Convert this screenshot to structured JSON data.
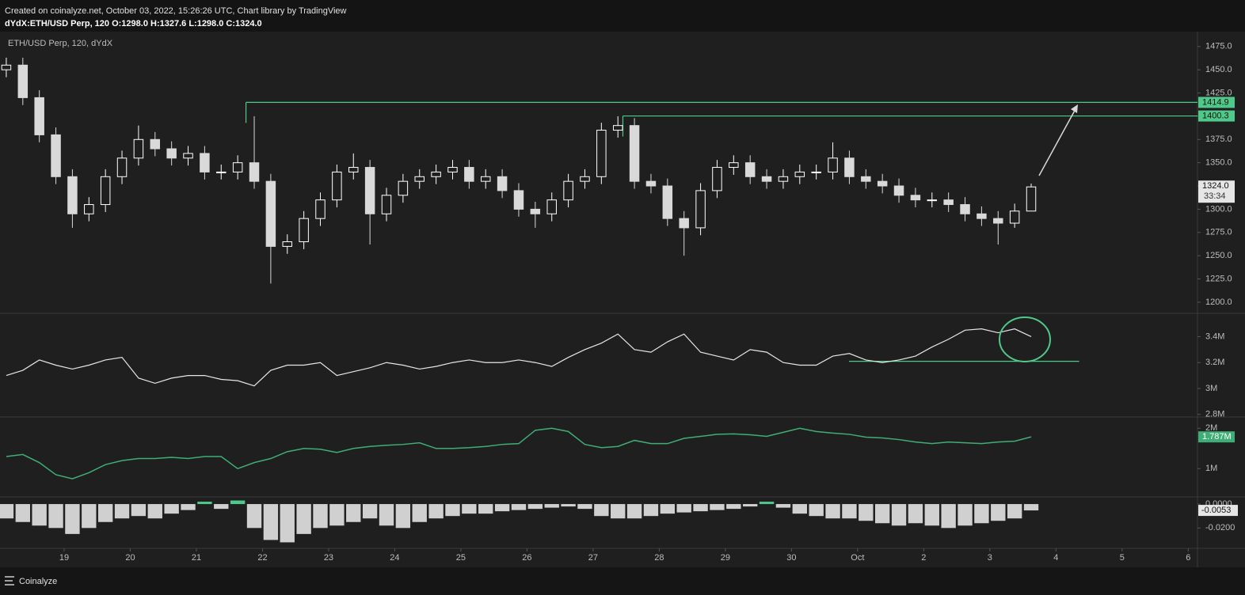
{
  "header": {
    "line1": "Created on coinalyze.net, October 03, 2022, 15:26:26 UTC, Chart library by TradingView",
    "line2": "dYdX:ETH/USD Perp, 120 O:1298.0 H:1327.6 L:1298.0 C:1324.0"
  },
  "footer": "Coinalyze",
  "chart_data": [
    {
      "type": "candlestick",
      "title": "ETH/USD Perp, 120, dYdX",
      "x": [
        18.125,
        18.375,
        18.625,
        18.875,
        19.125,
        19.375,
        19.625,
        19.875,
        20.125,
        20.375,
        20.625,
        20.875,
        21.125,
        21.375,
        21.625,
        21.875,
        22.125,
        22.375,
        22.625,
        22.875,
        23.125,
        23.375,
        23.625,
        23.875,
        24.125,
        24.375,
        24.625,
        24.875,
        25.125,
        25.375,
        25.625,
        25.875,
        26.125,
        26.375,
        26.625,
        26.875,
        27.125,
        27.375,
        27.625,
        27.875,
        28.125,
        28.375,
        28.625,
        28.875,
        29.125,
        29.375,
        29.625,
        29.875,
        30.125,
        30.375,
        30.625,
        30.875,
        31.125,
        31.375,
        31.625,
        31.875,
        32.125,
        32.375,
        32.625,
        32.875,
        33.125,
        33.375,
        33.625
      ],
      "open": [
        1450,
        1455,
        1420,
        1380,
        1335,
        1295,
        1305,
        1335,
        1355,
        1375,
        1365,
        1355,
        1360,
        1340,
        1340,
        1350,
        1330,
        1260,
        1265,
        1290,
        1310,
        1340,
        1345,
        1295,
        1315,
        1330,
        1335,
        1340,
        1345,
        1330,
        1335,
        1320,
        1300,
        1295,
        1310,
        1330,
        1335,
        1385,
        1390,
        1330,
        1325,
        1290,
        1280,
        1320,
        1345,
        1350,
        1335,
        1330,
        1335,
        1340,
        1340,
        1355,
        1335,
        1330,
        1325,
        1315,
        1310,
        1310,
        1305,
        1295,
        1290,
        1285,
        1298
      ],
      "high": [
        1463,
        1463,
        1428,
        1388,
        1343,
        1313,
        1343,
        1363,
        1390,
        1383,
        1373,
        1368,
        1368,
        1348,
        1358,
        1400,
        1338,
        1273,
        1298,
        1318,
        1348,
        1360,
        1353,
        1323,
        1338,
        1343,
        1348,
        1353,
        1353,
        1343,
        1343,
        1328,
        1308,
        1318,
        1338,
        1343,
        1393,
        1400,
        1398,
        1338,
        1333,
        1298,
        1328,
        1353,
        1358,
        1358,
        1343,
        1343,
        1348,
        1348,
        1372,
        1363,
        1343,
        1338,
        1333,
        1323,
        1318,
        1318,
        1313,
        1303,
        1298,
        1306,
        1327.6
      ],
      "low": [
        1442,
        1412,
        1372,
        1327,
        1280,
        1287,
        1297,
        1327,
        1347,
        1357,
        1347,
        1347,
        1332,
        1332,
        1332,
        1322,
        1220,
        1252,
        1257,
        1282,
        1302,
        1332,
        1262,
        1287,
        1307,
        1322,
        1327,
        1332,
        1322,
        1322,
        1312,
        1292,
        1280,
        1287,
        1302,
        1322,
        1327,
        1377,
        1322,
        1317,
        1282,
        1250,
        1272,
        1312,
        1337,
        1327,
        1322,
        1322,
        1327,
        1332,
        1332,
        1327,
        1322,
        1317,
        1307,
        1302,
        1302,
        1297,
        1287,
        1282,
        1262,
        1280,
        1298
      ],
      "close": [
        1455,
        1420,
        1380,
        1335,
        1295,
        1305,
        1335,
        1355,
        1375,
        1365,
        1355,
        1360,
        1340,
        1340,
        1350,
        1330,
        1260,
        1265,
        1290,
        1310,
        1340,
        1345,
        1295,
        1315,
        1330,
        1335,
        1340,
        1345,
        1330,
        1335,
        1320,
        1300,
        1295,
        1310,
        1330,
        1335,
        1385,
        1390,
        1330,
        1325,
        1290,
        1280,
        1320,
        1345,
        1350,
        1335,
        1330,
        1335,
        1340,
        1340,
        1355,
        1335,
        1330,
        1325,
        1315,
        1310,
        1310,
        1305,
        1295,
        1290,
        1285,
        1298,
        1324
      ],
      "up_color": "#ffffff",
      "down_color": "#d9d9d9",
      "xlim": [
        18.03,
        36.14
      ],
      "ylim": [
        1188,
        1491
      ],
      "yticks": [
        {
          "value": 1200,
          "label": "1200.0"
        },
        {
          "value": 1225,
          "label": "1225.0"
        },
        {
          "value": 1250,
          "label": "1250.0"
        },
        {
          "value": 1275,
          "label": "1275.0"
        },
        {
          "value": 1300,
          "label": "1300.0"
        },
        {
          "value": 1325,
          "label": "1325.0"
        },
        {
          "value": 1350,
          "label": "1350.0"
        },
        {
          "value": 1375,
          "label": "1375.0"
        },
        {
          "value": 1400,
          "label": "1400.0"
        },
        {
          "value": 1425,
          "label": "1425.0"
        },
        {
          "value": 1450,
          "label": "1450.0"
        },
        {
          "value": 1475,
          "label": "1475.0"
        }
      ],
      "levels": [
        {
          "value": 1414.9,
          "x_start": 21.75
        },
        {
          "value": 1400.3,
          "x_start": 27.45
        }
      ],
      "level_color": "#4fc98a",
      "last_value_label": "1324.0",
      "countdown": "33:34",
      "grid": false
    },
    {
      "type": "line",
      "x": [
        18.125,
        18.375,
        18.625,
        18.875,
        19.125,
        19.375,
        19.625,
        19.875,
        20.125,
        20.375,
        20.625,
        20.875,
        21.125,
        21.375,
        21.625,
        21.875,
        22.125,
        22.375,
        22.625,
        22.875,
        23.125,
        23.375,
        23.625,
        23.875,
        24.125,
        24.375,
        24.625,
        24.875,
        25.125,
        25.375,
        25.625,
        25.875,
        26.125,
        26.375,
        26.625,
        26.875,
        27.125,
        27.375,
        27.625,
        27.875,
        28.125,
        28.375,
        28.625,
        28.875,
        29.125,
        29.375,
        29.625,
        29.875,
        30.125,
        30.375,
        30.625,
        30.875,
        31.125,
        31.375,
        31.625,
        31.875,
        32.125,
        32.375,
        32.625,
        32.875,
        33.125,
        33.375,
        33.625
      ],
      "values": [
        3100000,
        3140000,
        3220000,
        3180000,
        3150000,
        3180000,
        3220000,
        3240000,
        3080000,
        3040000,
        3080000,
        3100000,
        3100000,
        3070000,
        3060000,
        3020000,
        3140000,
        3180000,
        3180000,
        3200000,
        3100000,
        3130000,
        3160000,
        3200000,
        3180000,
        3150000,
        3170000,
        3200000,
        3220000,
        3200000,
        3200000,
        3220000,
        3200000,
        3170000,
        3240000,
        3300000,
        3350000,
        3420000,
        3300000,
        3280000,
        3360000,
        3420000,
        3280000,
        3250000,
        3220000,
        3300000,
        3280000,
        3200000,
        3180000,
        3180000,
        3250000,
        3270000,
        3220000,
        3200000,
        3220000,
        3250000,
        3320000,
        3380000,
        3450000,
        3460000,
        3430000,
        3460000,
        3400000
      ],
      "color": "#e6e6e6",
      "xlim": [
        18.03,
        36.14
      ],
      "ylim": [
        2780000,
        3580000
      ],
      "yticks": [
        {
          "value": 2800000,
          "label": "2.8M"
        },
        {
          "value": 3000000,
          "label": "3M"
        },
        {
          "value": 3200000,
          "label": "3.2M"
        },
        {
          "value": 3400000,
          "label": "3.4M"
        }
      ],
      "levels": [
        {
          "value": 3210000,
          "x_start": 30.87,
          "x_end": 34.35
        }
      ],
      "level_color": "#4fc98a",
      "grid": false
    },
    {
      "type": "line",
      "x": [
        18.125,
        18.375,
        18.625,
        18.875,
        19.125,
        19.375,
        19.625,
        19.875,
        20.125,
        20.375,
        20.625,
        20.875,
        21.125,
        21.375,
        21.625,
        21.875,
        22.125,
        22.375,
        22.625,
        22.875,
        23.125,
        23.375,
        23.625,
        23.875,
        24.125,
        24.375,
        24.625,
        24.875,
        25.125,
        25.375,
        25.625,
        25.875,
        26.125,
        26.375,
        26.625,
        26.875,
        27.125,
        27.375,
        27.625,
        27.875,
        28.125,
        28.375,
        28.625,
        28.875,
        29.125,
        29.375,
        29.625,
        29.875,
        30.125,
        30.375,
        30.625,
        30.875,
        31.125,
        31.375,
        31.625,
        31.875,
        32.125,
        32.375,
        32.625,
        32.875,
        33.125,
        33.375,
        33.625
      ],
      "values": [
        1300000,
        1350000,
        1150000,
        850000,
        750000,
        900000,
        1100000,
        1200000,
        1250000,
        1250000,
        1280000,
        1250000,
        1300000,
        1300000,
        1000000,
        1150000,
        1250000,
        1420000,
        1500000,
        1480000,
        1400000,
        1500000,
        1550000,
        1580000,
        1600000,
        1640000,
        1500000,
        1500000,
        1520000,
        1550000,
        1600000,
        1620000,
        1950000,
        2000000,
        1920000,
        1600000,
        1520000,
        1550000,
        1700000,
        1620000,
        1620000,
        1750000,
        1800000,
        1850000,
        1860000,
        1840000,
        1800000,
        1900000,
        2000000,
        1920000,
        1880000,
        1850000,
        1780000,
        1760000,
        1720000,
        1660000,
        1620000,
        1660000,
        1640000,
        1620000,
        1660000,
        1680000,
        1787000
      ],
      "color": "#3fae76",
      "xlim": [
        18.03,
        36.14
      ],
      "ylim": [
        300000,
        2280000
      ],
      "yticks": [
        {
          "value": 1000000,
          "label": "1M"
        },
        {
          "value": 2000000,
          "label": "2M"
        }
      ],
      "last_value_label": "1.787M",
      "grid": false
    },
    {
      "type": "bar",
      "x": [
        18.125,
        18.375,
        18.625,
        18.875,
        19.125,
        19.375,
        19.625,
        19.875,
        20.125,
        20.375,
        20.625,
        20.875,
        21.125,
        21.375,
        21.625,
        21.875,
        22.125,
        22.375,
        22.625,
        22.875,
        23.125,
        23.375,
        23.625,
        23.875,
        24.125,
        24.375,
        24.625,
        24.875,
        25.125,
        25.375,
        25.625,
        25.875,
        26.125,
        26.375,
        26.625,
        26.875,
        27.125,
        27.375,
        27.625,
        27.875,
        28.125,
        28.375,
        28.625,
        28.875,
        29.125,
        29.375,
        29.625,
        29.875,
        30.125,
        30.375,
        30.625,
        30.875,
        31.125,
        31.375,
        31.625,
        31.875,
        32.125,
        32.375,
        32.625,
        32.875,
        33.125,
        33.375,
        33.625
      ],
      "values": [
        -0.012,
        -0.015,
        -0.018,
        -0.02,
        -0.025,
        -0.02,
        -0.015,
        -0.012,
        -0.01,
        -0.012,
        -0.008,
        -0.005,
        0.002,
        -0.004,
        0.003,
        -0.02,
        -0.03,
        -0.032,
        -0.025,
        -0.02,
        -0.018,
        -0.015,
        -0.012,
        -0.018,
        -0.02,
        -0.015,
        -0.012,
        -0.01,
        -0.008,
        -0.008,
        -0.006,
        -0.005,
        -0.004,
        -0.003,
        -0.002,
        -0.004,
        -0.01,
        -0.012,
        -0.012,
        -0.01,
        -0.008,
        -0.007,
        -0.006,
        -0.005,
        -0.004,
        -0.002,
        0.002,
        -0.003,
        -0.008,
        -0.01,
        -0.012,
        -0.012,
        -0.014,
        -0.016,
        -0.018,
        -0.016,
        -0.018,
        -0.02,
        -0.018,
        -0.016,
        -0.014,
        -0.012,
        -0.0053
      ],
      "up_color": "#4fc98a",
      "down_color": "#d0d0d0",
      "xlim": [
        18.03,
        36.14
      ],
      "ylim": [
        -0.037,
        0.006
      ],
      "yticks": [
        {
          "value": -0.02,
          "label": "-0.0200"
        },
        {
          "value": 0,
          "label": "0.0000"
        }
      ],
      "xticks": [
        19,
        20,
        21,
        22,
        23,
        24,
        25,
        26,
        27,
        28,
        29,
        30,
        {
          "value": 31,
          "label": "Oct"
        },
        {
          "value": 32,
          "label": "2"
        },
        {
          "value": 33,
          "label": "3"
        },
        {
          "value": 34,
          "label": "4"
        },
        {
          "value": 35,
          "label": "5"
        },
        {
          "value": 36,
          "label": "6"
        }
      ],
      "grid": false
    }
  ]
}
